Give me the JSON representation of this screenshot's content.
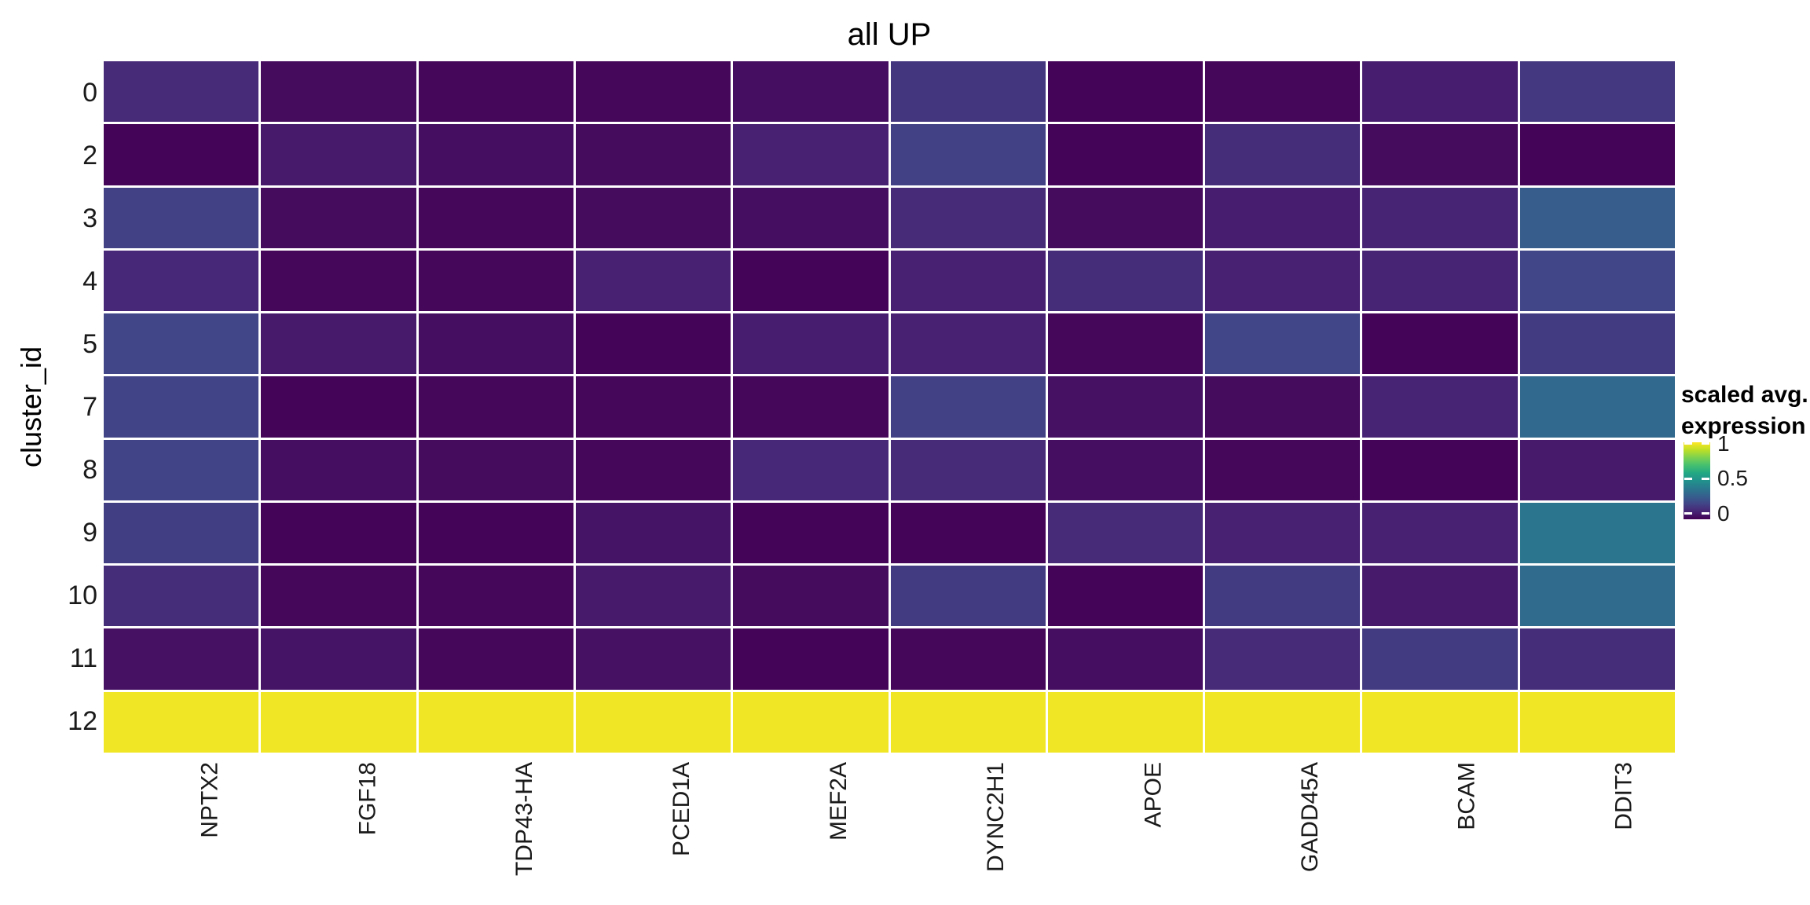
{
  "title": "all UP",
  "y_axis": {
    "title": "cluster_id"
  },
  "legend": {
    "title_lines": [
      "scaled avg.",
      "expression"
    ],
    "ticks": [
      {
        "label": "1",
        "value": 1
      },
      {
        "label": "0.5",
        "value": 0.5
      },
      {
        "label": "0",
        "value": 0
      }
    ]
  },
  "chart_data": {
    "type": "heatmap",
    "title": "all UP",
    "xlabel": "",
    "ylabel": "cluster_id",
    "x": [
      "NPTX2",
      "FGF18",
      "TDP43-HA",
      "PCED1A",
      "MEF2A",
      "DYNC2H1",
      "APOE",
      "GADD45A",
      "BCAM",
      "DDIT3"
    ],
    "y": [
      "0",
      "2",
      "3",
      "4",
      "5",
      "7",
      "8",
      "9",
      "10",
      "11",
      "12"
    ],
    "values": [
      [
        0.05,
        -0.05,
        -0.06,
        -0.06,
        -0.04,
        0.09,
        -0.07,
        -0.06,
        0.01,
        0.1
      ],
      [
        -0.07,
        0.0,
        -0.04,
        -0.05,
        0.02,
        0.13,
        -0.07,
        0.06,
        -0.05,
        -0.07
      ],
      [
        0.13,
        -0.05,
        -0.06,
        -0.05,
        -0.04,
        0.05,
        -0.05,
        0.01,
        0.03,
        0.24
      ],
      [
        0.04,
        -0.06,
        -0.06,
        0.02,
        -0.07,
        0.02,
        0.06,
        0.02,
        0.03,
        0.15
      ],
      [
        0.15,
        0.0,
        -0.04,
        -0.07,
        0.01,
        0.02,
        -0.06,
        0.15,
        -0.07,
        0.11
      ],
      [
        0.14,
        -0.07,
        -0.06,
        -0.06,
        -0.06,
        0.13,
        -0.03,
        -0.05,
        0.03,
        0.29
      ],
      [
        0.14,
        -0.04,
        -0.05,
        -0.06,
        0.04,
        0.05,
        -0.04,
        -0.06,
        -0.07,
        0.0
      ],
      [
        0.12,
        -0.07,
        -0.07,
        -0.02,
        -0.07,
        -0.07,
        0.05,
        0.02,
        0.02,
        0.35
      ],
      [
        0.06,
        -0.06,
        -0.06,
        0.0,
        -0.05,
        0.11,
        -0.07,
        0.11,
        0.0,
        0.3
      ],
      [
        -0.03,
        -0.02,
        -0.06,
        -0.03,
        -0.07,
        -0.06,
        -0.04,
        0.05,
        0.11,
        0.06
      ],
      [
        1,
        1,
        1,
        1,
        1,
        1,
        1,
        1,
        1,
        1
      ]
    ],
    "legend_title": "scaled avg. expression",
    "color_scale_limits": [
      -0.08,
      1.02
    ],
    "colormap": "viridis",
    "colormap_anchors": [
      "#440154",
      "#482475",
      "#414487",
      "#355f8d",
      "#2a788e",
      "#21918c",
      "#22a884",
      "#44bf70",
      "#7ad151",
      "#bddf26",
      "#fde725"
    ],
    "grid_line_color": "#ffffff",
    "legend_position": "right",
    "x_tick_rotation": 90
  }
}
